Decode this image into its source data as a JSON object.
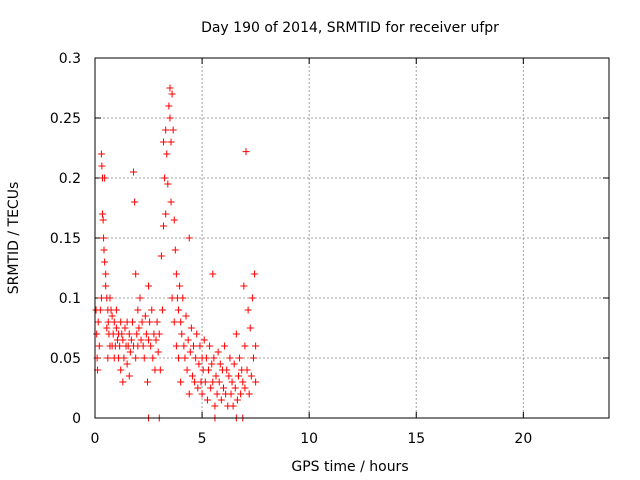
{
  "chart_data": {
    "type": "scatter",
    "title": "Day 190 of 2014, SRMTID for receiver ufpr",
    "xlabel": "GPS time / hours",
    "ylabel": "SRMTID / TECUs",
    "xlim": [
      0,
      24
    ],
    "ylim": [
      0,
      0.3
    ],
    "xticks": [
      0,
      5,
      10,
      15,
      20
    ],
    "xtick_labels": [
      "0",
      "5",
      "10",
      "15",
      "20"
    ],
    "yticks": [
      0,
      0.05,
      0.1,
      0.15,
      0.2,
      0.25,
      0.3
    ],
    "ytick_labels": [
      "0",
      "0.05",
      "0.1",
      "0.15",
      "0.2",
      "0.25",
      "0.3"
    ],
    "grid": true,
    "marker": "+",
    "color": "#ff0000",
    "series": [
      {
        "points": [
          [
            0.05,
            0.09
          ],
          [
            0.08,
            0.07
          ],
          [
            0.1,
            0.05
          ],
          [
            0.12,
            0.04
          ],
          [
            0.15,
            0.08
          ],
          [
            0.2,
            0.06
          ],
          [
            0.25,
            0.09
          ],
          [
            0.3,
            0.1
          ],
          [
            0.3,
            0.22
          ],
          [
            0.32,
            0.21
          ],
          [
            0.35,
            0.2
          ],
          [
            0.35,
            0.17
          ],
          [
            0.38,
            0.165
          ],
          [
            0.4,
            0.15
          ],
          [
            0.42,
            0.14
          ],
          [
            0.45,
            0.13
          ],
          [
            0.45,
            0.2
          ],
          [
            0.5,
            0.12
          ],
          [
            0.5,
            0.11
          ],
          [
            0.55,
            0.1
          ],
          [
            0.55,
            0.075
          ],
          [
            0.6,
            0.09
          ],
          [
            0.6,
            0.05
          ],
          [
            0.62,
            0.08
          ],
          [
            0.65,
            0.07
          ],
          [
            0.7,
            0.06
          ],
          [
            0.7,
            0.1
          ],
          [
            0.75,
            0.09
          ],
          [
            0.8,
            0.085
          ],
          [
            0.8,
            0.06
          ],
          [
            0.85,
            0.07
          ],
          [
            0.9,
            0.08
          ],
          [
            0.9,
            0.05
          ],
          [
            0.95,
            0.06
          ],
          [
            1.0,
            0.075
          ],
          [
            1.0,
            0.09
          ],
          [
            1.05,
            0.065
          ],
          [
            1.1,
            0.07
          ],
          [
            1.1,
            0.05
          ],
          [
            1.15,
            0.06
          ],
          [
            1.2,
            0.08
          ],
          [
            1.2,
            0.04
          ],
          [
            1.25,
            0.07
          ],
          [
            1.3,
            0.065
          ],
          [
            1.3,
            0.03
          ],
          [
            1.35,
            0.05
          ],
          [
            1.4,
            0.075
          ],
          [
            1.45,
            0.06
          ],
          [
            1.5,
            0.08
          ],
          [
            1.5,
            0.045
          ],
          [
            1.55,
            0.06
          ],
          [
            1.6,
            0.07
          ],
          [
            1.6,
            0.035
          ],
          [
            1.65,
            0.055
          ],
          [
            1.7,
            0.065
          ],
          [
            1.75,
            0.08
          ],
          [
            1.8,
            0.06
          ],
          [
            1.8,
            0.205
          ],
          [
            1.85,
            0.18
          ],
          [
            1.9,
            0.12
          ],
          [
            1.9,
            0.05
          ],
          [
            1.95,
            0.07
          ],
          [
            2.0,
            0.09
          ],
          [
            2.0,
            0.06
          ],
          [
            2.05,
            0.075
          ],
          [
            2.1,
            0.1
          ],
          [
            2.15,
            0.065
          ],
          [
            2.2,
            0.08
          ],
          [
            2.25,
            0.06
          ],
          [
            2.3,
            0.05
          ],
          [
            2.35,
            0.085
          ],
          [
            2.4,
            0.07
          ],
          [
            2.45,
            0.03
          ],
          [
            2.5,
            0.11
          ],
          [
            2.5,
            0.065
          ],
          [
            2.55,
            0.08
          ],
          [
            2.6,
            0.06
          ],
          [
            2.65,
            0.09
          ],
          [
            2.7,
            0.05
          ],
          [
            2.75,
            0.07
          ],
          [
            2.8,
            0.04
          ],
          [
            2.85,
            0.065
          ],
          [
            2.9,
            0.08
          ],
          [
            2.95,
            0.055
          ],
          [
            3.0,
            0.07
          ],
          [
            3.05,
            0.04
          ],
          [
            3.1,
            0.135
          ],
          [
            3.15,
            0.09
          ],
          [
            3.2,
            0.16
          ],
          [
            3.2,
            0.23
          ],
          [
            3.25,
            0.2
          ],
          [
            3.3,
            0.17
          ],
          [
            3.3,
            0.24
          ],
          [
            3.35,
            0.22
          ],
          [
            3.4,
            0.195
          ],
          [
            3.45,
            0.26
          ],
          [
            3.5,
            0.275
          ],
          [
            3.5,
            0.25
          ],
          [
            3.55,
            0.23
          ],
          [
            3.55,
            0.18
          ],
          [
            3.6,
            0.27
          ],
          [
            3.6,
            0.1
          ],
          [
            3.65,
            0.24
          ],
          [
            3.7,
            0.165
          ],
          [
            3.7,
            0.08
          ],
          [
            3.75,
            0.14
          ],
          [
            3.8,
            0.12
          ],
          [
            3.8,
            0.06
          ],
          [
            3.85,
            0.1
          ],
          [
            3.9,
            0.09
          ],
          [
            3.9,
            0.05
          ],
          [
            3.95,
            0.11
          ],
          [
            4.0,
            0.08
          ],
          [
            4.0,
            0.03
          ],
          [
            4.05,
            0.07
          ],
          [
            4.1,
            0.1
          ],
          [
            4.15,
            0.06
          ],
          [
            4.2,
            0.05
          ],
          [
            4.25,
            0.085
          ],
          [
            4.3,
            0.04
          ],
          [
            4.35,
            0.065
          ],
          [
            4.4,
            0.15
          ],
          [
            4.4,
            0.02
          ],
          [
            4.45,
            0.055
          ],
          [
            4.5,
            0.075
          ],
          [
            4.55,
            0.035
          ],
          [
            4.6,
            0.06
          ],
          [
            4.65,
            0.03
          ],
          [
            4.7,
            0.05
          ],
          [
            4.75,
            0.07
          ],
          [
            4.8,
            0.025
          ],
          [
            4.85,
            0.045
          ],
          [
            4.9,
            0.06
          ],
          [
            4.95,
            0.03
          ],
          [
            5.0,
            0.05
          ],
          [
            5.0,
            0.02
          ],
          [
            5.05,
            0.04
          ],
          [
            5.1,
            0.065
          ],
          [
            5.15,
            0.03
          ],
          [
            5.2,
            0.05
          ],
          [
            5.25,
            0.015
          ],
          [
            5.3,
            0.04
          ],
          [
            5.35,
            0.06
          ],
          [
            5.4,
            0.025
          ],
          [
            5.45,
            0.045
          ],
          [
            5.5,
            0.03
          ],
          [
            5.5,
            0.12
          ],
          [
            5.55,
            0.05
          ],
          [
            5.6,
            0.01
          ],
          [
            5.65,
            0.035
          ],
          [
            5.7,
            0.02
          ],
          [
            5.75,
            0.055
          ],
          [
            5.8,
            0.03
          ],
          [
            5.85,
            0.045
          ],
          [
            5.9,
            0.015
          ],
          [
            5.95,
            0.04
          ],
          [
            6.0,
            0.025
          ],
          [
            6.05,
            0.06
          ],
          [
            6.1,
            0.02
          ],
          [
            6.15,
            0.04
          ],
          [
            6.2,
            0.01
          ],
          [
            6.25,
            0.035
          ],
          [
            6.3,
            0.05
          ],
          [
            6.35,
            0.02
          ],
          [
            6.4,
            0.03
          ],
          [
            6.45,
            0.01
          ],
          [
            6.5,
            0.045
          ],
          [
            6.55,
            0.025
          ],
          [
            6.6,
            0.07
          ],
          [
            6.65,
            0.015
          ],
          [
            6.7,
            0.035
          ],
          [
            6.75,
            0.05
          ],
          [
            6.8,
            0.02
          ],
          [
            6.85,
            0.04
          ],
          [
            6.9,
            0.03
          ],
          [
            6.95,
            0.11
          ],
          [
            7.0,
            0.06
          ],
          [
            7.0,
            0.025
          ],
          [
            7.05,
            0.222
          ],
          [
            7.1,
            0.04
          ],
          [
            7.15,
            0.09
          ],
          [
            7.2,
            0.02
          ],
          [
            7.25,
            0.075
          ],
          [
            7.3,
            0.035
          ],
          [
            7.35,
            0.1
          ],
          [
            7.4,
            0.05
          ],
          [
            7.45,
            0.12
          ],
          [
            7.5,
            0.06
          ],
          [
            7.5,
            0.03
          ],
          [
            2.5,
            0.0
          ],
          [
            3.0,
            0.0
          ],
          [
            5.6,
            0.0
          ],
          [
            6.6,
            0.0
          ],
          [
            6.9,
            0.0
          ]
        ]
      }
    ]
  }
}
